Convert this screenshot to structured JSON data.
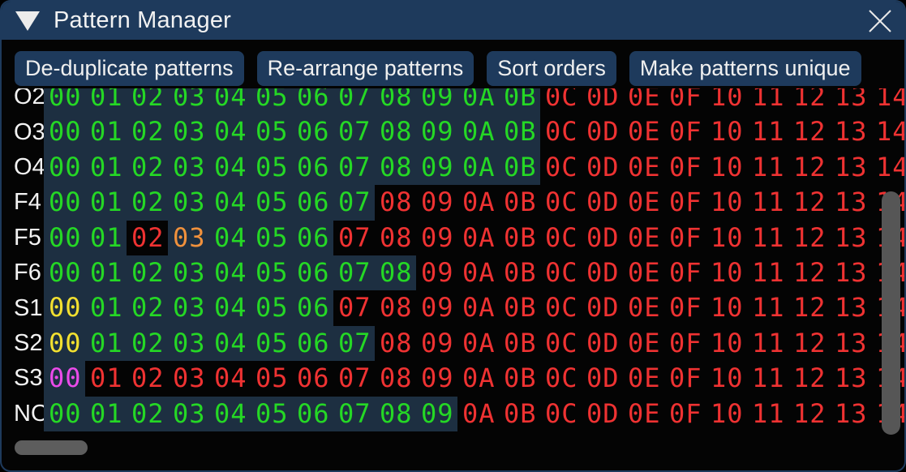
{
  "window": {
    "title": "Pattern Manager"
  },
  "toolbar": {
    "buttons": [
      "De-duplicate patterns",
      "Re-arrange patterns",
      "Sort orders",
      "Make patterns unique"
    ]
  },
  "pattern_grid": {
    "column_values": [
      "00",
      "01",
      "02",
      "03",
      "04",
      "05",
      "06",
      "07",
      "08",
      "09",
      "0A",
      "0B",
      "0C",
      "0D",
      "0E",
      "0F",
      "10",
      "11",
      "12",
      "13",
      "14"
    ],
    "rows": [
      {
        "label": "O2",
        "cell_colors": "ggggggggggggrrrrrrrrr",
        "highlighted": "111111111111000000000"
      },
      {
        "label": "O3",
        "cell_colors": "ggggggggggggrrrrrrrrr",
        "highlighted": "111111111111000000000"
      },
      {
        "label": "O4",
        "cell_colors": "ggggggggggggrrrrrrrrr",
        "highlighted": "111111111111000000000"
      },
      {
        "label": "F4",
        "cell_colors": "ggggggggrrrrrrrrrrrrr",
        "highlighted": "111111110000000000000"
      },
      {
        "label": "F5",
        "cell_colors": "ggrogggrrrrrrrrrrrrrr",
        "highlighted": "110111100000000000000"
      },
      {
        "label": "F6",
        "cell_colors": "gggggggggrrrrrrrrrrrr",
        "highlighted": "111111111000000000000"
      },
      {
        "label": "S1",
        "cell_colors": "yggggggrrrrrrrrrrrrrr",
        "highlighted": "111111100000000000000"
      },
      {
        "label": "S2",
        "cell_colors": "ygggggggrrrrrrrrrrrrr",
        "highlighted": "111111110000000000000"
      },
      {
        "label": "S3",
        "cell_colors": "mrrrrrrrrrrrrrrrrrrrr",
        "highlighted": "100000000000000000000"
      },
      {
        "label": "NO",
        "cell_colors": "ggggggggggrrrrrrrrrrr",
        "highlighted": "111111111100000000000"
      }
    ]
  },
  "colors": {
    "accent": "#1e3a5c",
    "highlight_bg": "#1d2f41",
    "green": "#25d825",
    "red": "#ef3232",
    "orange": "#f0913c",
    "yellow": "#f2e030",
    "magenta": "#ea4bea"
  }
}
